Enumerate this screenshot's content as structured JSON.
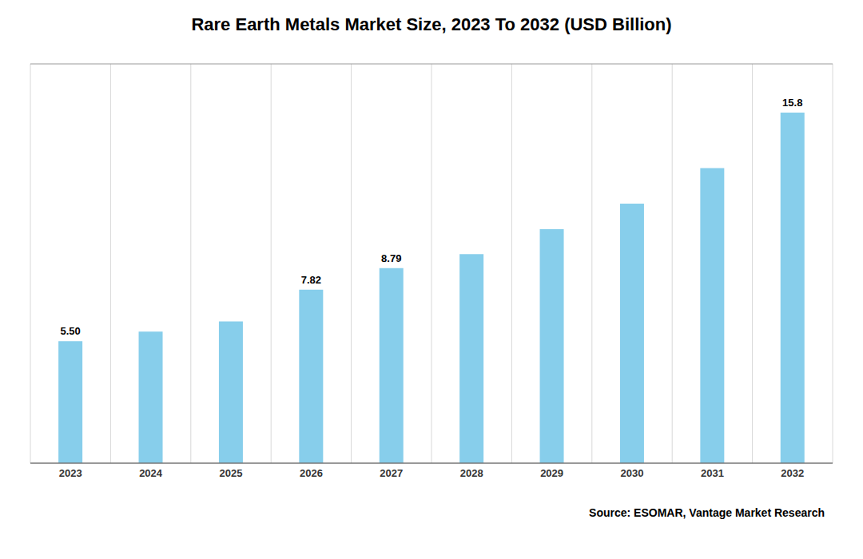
{
  "chart_data": {
    "type": "bar",
    "title": "Rare Earth Metals Market Size, 2023 To 2032 (USD Billion)",
    "categories": [
      "2023",
      "2024",
      "2025",
      "2026",
      "2027",
      "2028",
      "2029",
      "2030",
      "2031",
      "2032"
    ],
    "values": [
      5.5,
      5.93,
      6.39,
      7.82,
      8.79,
      9.42,
      10.55,
      11.7,
      13.3,
      15.8
    ],
    "value_labels": [
      "5.50",
      null,
      null,
      "7.82",
      "8.79",
      null,
      null,
      null,
      null,
      "15.8"
    ],
    "data_labels": true,
    "color": "#87CEEB",
    "ylim": [
      0,
      18
    ],
    "grid": true,
    "tick_labels": "x",
    "annotations": [
      "Source: ESOMAR, Vantage Market Research"
    ]
  }
}
